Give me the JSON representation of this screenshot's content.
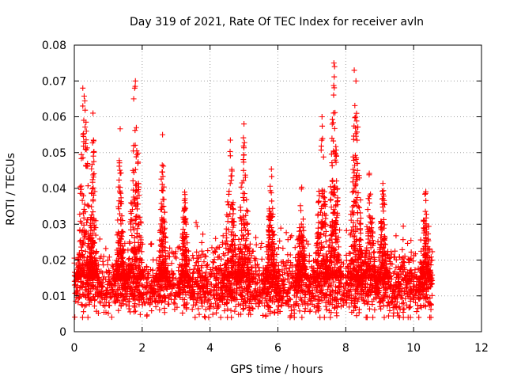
{
  "chart_data": {
    "type": "scatter",
    "title": "Day 319 of 2021, Rate Of TEC Index for receiver avln",
    "xlabel": "GPS time / hours",
    "ylabel": "ROTI / TECUs",
    "xlim": [
      0,
      12
    ],
    "ylim": [
      0,
      0.08
    ],
    "xticks": [
      "0",
      "2",
      "4",
      "6",
      "8",
      "10",
      "12"
    ],
    "yticks": [
      "0",
      "0.01",
      "0.02",
      "0.03",
      "0.04",
      "0.05",
      "0.06",
      "0.07",
      "0.08"
    ],
    "grid": true,
    "marker": "+",
    "color": "#ff0000",
    "x_range_of_data": [
      0,
      10.55
    ],
    "notable_points": [
      {
        "x": 0.25,
        "y": 0.068
      },
      {
        "x": 0.25,
        "y": 0.063
      },
      {
        "x": 1.8,
        "y": 0.07
      },
      {
        "x": 1.78,
        "y": 0.068
      },
      {
        "x": 1.75,
        "y": 0.065
      },
      {
        "x": 7.65,
        "y": 0.075
      },
      {
        "x": 7.67,
        "y": 0.074
      },
      {
        "x": 8.25,
        "y": 0.073
      },
      {
        "x": 8.3,
        "y": 0.07
      },
      {
        "x": 5.0,
        "y": 0.058
      },
      {
        "x": 7.3,
        "y": 0.06
      },
      {
        "x": 2.6,
        "y": 0.055
      },
      {
        "x": 0.55,
        "y": 0.061
      }
    ],
    "bursts": [
      {
        "center": 0.3,
        "peak": 0.068,
        "width": 0.3
      },
      {
        "center": 0.55,
        "peak": 0.061,
        "width": 0.15
      },
      {
        "center": 1.35,
        "peak": 0.058,
        "width": 0.15
      },
      {
        "center": 1.8,
        "peak": 0.07,
        "width": 0.25
      },
      {
        "center": 2.6,
        "peak": 0.055,
        "width": 0.15
      },
      {
        "center": 3.25,
        "peak": 0.043,
        "width": 0.15
      },
      {
        "center": 4.6,
        "peak": 0.055,
        "width": 0.25
      },
      {
        "center": 5.0,
        "peak": 0.058,
        "width": 0.25
      },
      {
        "center": 5.8,
        "peak": 0.048,
        "width": 0.2
      },
      {
        "center": 6.7,
        "peak": 0.043,
        "width": 0.2
      },
      {
        "center": 7.3,
        "peak": 0.06,
        "width": 0.25
      },
      {
        "center": 7.65,
        "peak": 0.075,
        "width": 0.2
      },
      {
        "center": 8.3,
        "peak": 0.073,
        "width": 0.25
      },
      {
        "center": 8.7,
        "peak": 0.046,
        "width": 0.25
      },
      {
        "center": 9.1,
        "peak": 0.044,
        "width": 0.2
      },
      {
        "center": 10.35,
        "peak": 0.043,
        "width": 0.2
      }
    ],
    "baseline": {
      "y_min": 0.004,
      "y_typical": 0.012,
      "y_spread": 0.008
    }
  }
}
